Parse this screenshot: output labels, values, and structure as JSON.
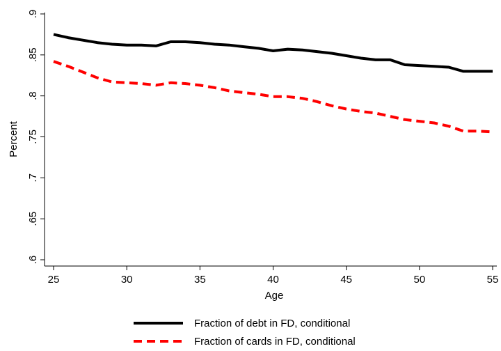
{
  "chart_data": {
    "type": "line",
    "title": "",
    "xlabel": "Age",
    "ylabel": "Percent",
    "xlim": [
      25,
      55
    ],
    "ylim": [
      0.6,
      0.9
    ],
    "x_ticks": [
      25,
      30,
      35,
      40,
      45,
      50,
      55
    ],
    "x_tick_labels": [
      "25",
      "30",
      "35",
      "40",
      "45",
      "50",
      "55"
    ],
    "y_ticks": [
      0.6,
      0.65,
      0.7,
      0.75,
      0.8,
      0.85,
      0.9
    ],
    "y_tick_labels": [
      ".6",
      ".65",
      ".7",
      ".75",
      ".8",
      ".85",
      ".9"
    ],
    "grid": false,
    "legend_position": "bottom",
    "x": [
      25,
      26,
      27,
      28,
      29,
      30,
      31,
      32,
      33,
      34,
      35,
      36,
      37,
      38,
      39,
      40,
      41,
      42,
      43,
      44,
      45,
      46,
      47,
      48,
      49,
      50,
      51,
      52,
      53,
      54,
      55
    ],
    "series": [
      {
        "name": "Fraction of debt in FD, conditional",
        "color": "#000000",
        "style": "solid",
        "values": [
          0.875,
          0.871,
          0.868,
          0.865,
          0.863,
          0.862,
          0.862,
          0.861,
          0.866,
          0.866,
          0.865,
          0.863,
          0.862,
          0.86,
          0.858,
          0.855,
          0.857,
          0.856,
          0.854,
          0.852,
          0.849,
          0.846,
          0.844,
          0.844,
          0.838,
          0.837,
          0.836,
          0.835,
          0.83,
          0.83,
          0.83
        ]
      },
      {
        "name": "Fraction of cards in FD, conditional",
        "color": "#ff0000",
        "style": "dashed",
        "values": [
          0.842,
          0.836,
          0.829,
          0.822,
          0.817,
          0.816,
          0.815,
          0.813,
          0.816,
          0.815,
          0.813,
          0.81,
          0.806,
          0.804,
          0.802,
          0.799,
          0.799,
          0.797,
          0.793,
          0.788,
          0.784,
          0.781,
          0.779,
          0.775,
          0.771,
          0.769,
          0.767,
          0.763,
          0.757,
          0.757,
          0.756
        ]
      }
    ]
  }
}
